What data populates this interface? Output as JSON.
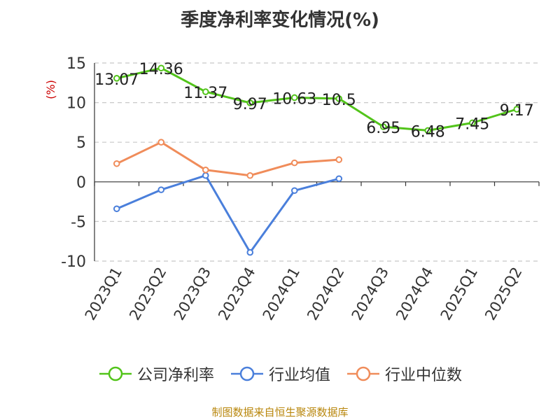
{
  "chart_data": {
    "type": "line",
    "title": "季度净利率变化情况(%)",
    "ylabel": "(%)",
    "xlabel": "",
    "categories": [
      "2023Q1",
      "2023Q2",
      "2023Q3",
      "2023Q4",
      "2024Q1",
      "2024Q2",
      "2024Q3",
      "2024Q4",
      "2025Q1",
      "2025Q2"
    ],
    "ylim": [
      -10,
      15
    ],
    "yticks": [
      "15",
      "10",
      "5",
      "0",
      "-5",
      "-10"
    ],
    "grid": true,
    "legend_position": "bottom",
    "series": [
      {
        "name": "公司净利率",
        "color": "#52c41a",
        "values": [
          13.07,
          14.36,
          11.37,
          9.97,
          10.63,
          10.5,
          6.95,
          6.48,
          7.45,
          9.17
        ],
        "labels": [
          "13.07",
          "14.36",
          "11.37",
          "9.97",
          "10.63",
          "10.5",
          "6.95",
          "6.48",
          "7.45",
          "9.17"
        ]
      },
      {
        "name": "行业均值",
        "color": "#4a7fdb",
        "values": [
          -3.4,
          -1.0,
          0.8,
          -8.9,
          -1.1,
          0.4,
          null,
          null,
          null,
          null
        ]
      },
      {
        "name": "行业中位数",
        "color": "#f08c5a",
        "values": [
          2.3,
          5.0,
          1.5,
          0.8,
          2.4,
          2.8,
          null,
          null,
          null,
          null
        ]
      }
    ]
  },
  "source_note": "制图数据来自恒生聚源数据库"
}
